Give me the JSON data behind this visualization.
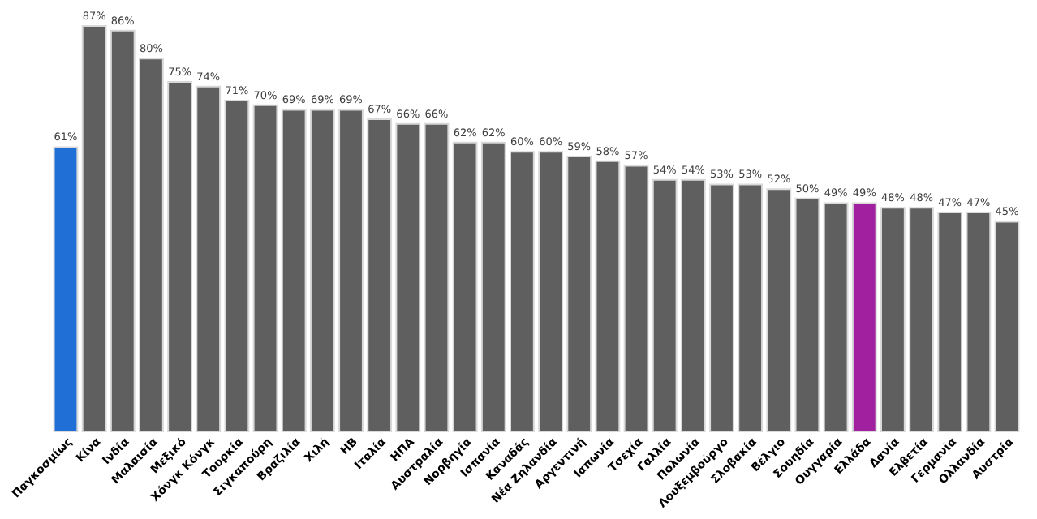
{
  "chart_data": {
    "type": "bar",
    "categories": [
      "Παγκοσμίως",
      "Κίνα",
      "Ινδία",
      "Μαλαισία",
      "Μεξικό",
      "Χόνγκ Κόνγκ",
      "Τουρκία",
      "Σιγκαπούρη",
      "Βραζιλία",
      "Χιλή",
      "ΗΒ",
      "Ιταλία",
      "ΗΠΑ",
      "Αυστραλία",
      "Νορβηγία",
      "Ισπανία",
      "Καναδάς",
      "Νέα Ζηλανδία",
      "Αργεντινή",
      "Ιαπωνία",
      "Τσεχία",
      "Γαλλία",
      "Πολωνία",
      "Λουξεμβούργο",
      "Σλοβακία",
      "Βέλγιο",
      "Σουηδία",
      "Ουγγαρία",
      "Ελλάδα",
      "Δανία",
      "Ελβετία",
      "Γερμανία",
      "Ολλανδία",
      "Αυστρία"
    ],
    "values": [
      61,
      87,
      86,
      80,
      75,
      74,
      71,
      70,
      69,
      69,
      69,
      67,
      66,
      66,
      62,
      62,
      60,
      60,
      59,
      58,
      57,
      54,
      54,
      53,
      53,
      52,
      50,
      49,
      49,
      48,
      48,
      47,
      47,
      45
    ],
    "colors": [
      "#1f6fd6",
      "#5f5f5f",
      "#5f5f5f",
      "#5f5f5f",
      "#5f5f5f",
      "#5f5f5f",
      "#5f5f5f",
      "#5f5f5f",
      "#5f5f5f",
      "#5f5f5f",
      "#5f5f5f",
      "#5f5f5f",
      "#5f5f5f",
      "#5f5f5f",
      "#5f5f5f",
      "#5f5f5f",
      "#5f5f5f",
      "#5f5f5f",
      "#5f5f5f",
      "#5f5f5f",
      "#5f5f5f",
      "#5f5f5f",
      "#5f5f5f",
      "#5f5f5f",
      "#5f5f5f",
      "#5f5f5f",
      "#5f5f5f",
      "#5f5f5f",
      "#a020a0",
      "#5f5f5f",
      "#5f5f5f",
      "#5f5f5f",
      "#5f5f5f",
      "#5f5f5f"
    ],
    "value_labels": [
      "61%",
      "87%",
      "86%",
      "80%",
      "75%",
      "74%",
      "71%",
      "70%",
      "69%",
      "69%",
      "69%",
      "67%",
      "66%",
      "66%",
      "62%",
      "62%",
      "60%",
      "60%",
      "59%",
      "58%",
      "57%",
      "54%",
      "54%",
      "53%",
      "53%",
      "52%",
      "50%",
      "49%",
      "49%",
      "48%",
      "48%",
      "47%",
      "47%",
      "45%"
    ],
    "tick_labels": "x",
    "grid": false
  }
}
